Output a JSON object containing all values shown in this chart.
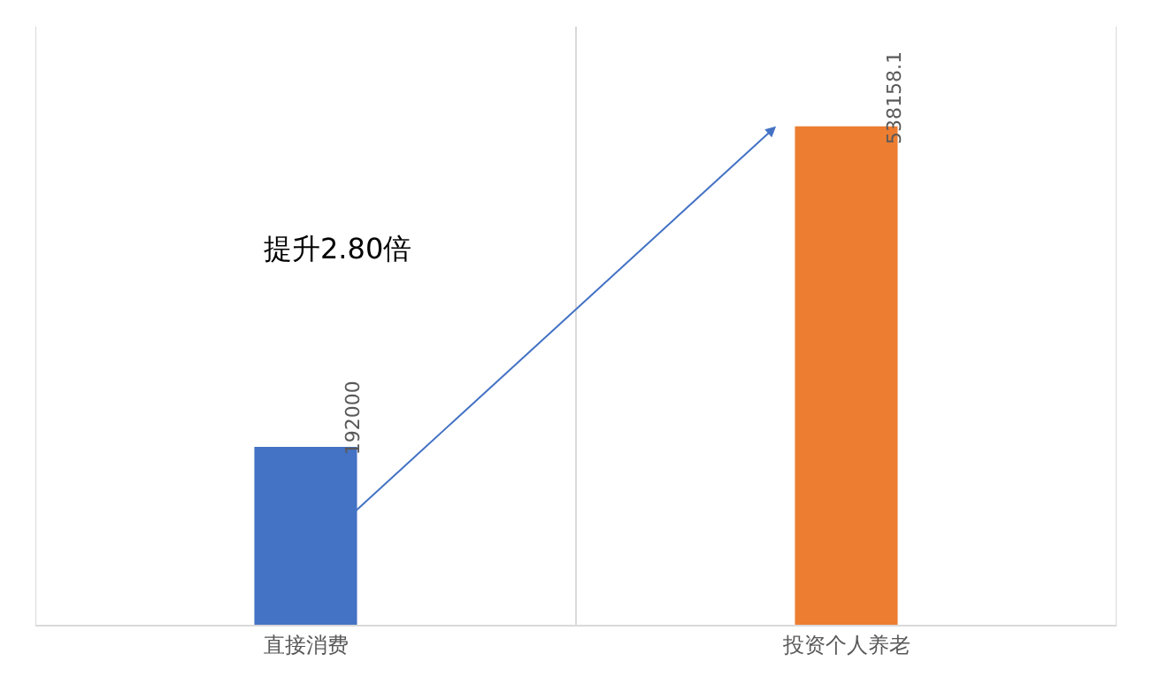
{
  "chart_data": {
    "type": "bar",
    "categories": [
      "直接消费",
      "投资个人养老"
    ],
    "values": [
      192000,
      538158.1
    ],
    "colors": [
      "#4472c4",
      "#ed7d31"
    ],
    "data_labels": true,
    "grid": "x",
    "annotations": [
      "提升2.80倍"
    ]
  }
}
